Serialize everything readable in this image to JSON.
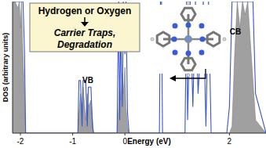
{
  "chart_data": {
    "type": "area",
    "x_label": "Energy (eV)",
    "y_label": "DOS (arbitrary units)",
    "annotations": [
      "Hydrogen or Oxygen",
      "Carrier Traps,",
      "Degradation",
      "VB",
      "CB"
    ],
    "x": [
      -2.15,
      -2.1,
      -2.05,
      -2.02,
      -2.0,
      -1.98,
      -1.95,
      -1.92,
      -1.9,
      -0.9,
      -0.88,
      -0.85,
      -0.82,
      -0.8,
      -0.75,
      -0.72,
      -0.7,
      -0.65,
      -0.62,
      -0.6,
      -0.15,
      -0.12,
      -0.1,
      -0.08,
      -0.05,
      -0.03,
      0.0,
      0.02,
      0.05,
      0.08,
      0.66,
      0.68,
      0.7,
      0.72,
      1.15,
      1.18,
      1.2,
      1.25,
      1.3,
      1.35,
      1.4,
      1.5,
      1.55,
      1.6,
      1.65,
      1.95,
      2.0,
      2.05,
      2.1,
      2.15,
      2.2,
      2.25,
      2.3,
      2.35,
      2.4,
      2.45,
      2.5,
      2.7
    ],
    "series": [
      {
        "type": "area",
        "color": "#a0a0a0",
        "values": [
          100,
          100,
          95,
          100,
          80,
          100,
          60,
          30,
          0,
          0,
          15,
          30,
          20,
          35,
          10,
          30,
          20,
          25,
          10,
          0,
          0,
          20,
          40,
          25,
          45,
          30,
          50,
          20,
          5,
          0,
          0,
          0,
          0,
          0,
          0,
          0,
          0,
          0,
          0,
          0,
          0,
          0,
          0,
          0,
          0,
          0,
          0,
          5,
          60,
          100,
          80,
          100,
          90,
          100,
          70,
          40,
          10,
          0
        ]
      },
      {
        "type": "line",
        "color": "#3a55d0",
        "values": [
          100,
          100,
          100,
          100,
          100,
          100,
          100,
          60,
          0,
          0,
          40,
          40,
          5,
          40,
          40,
          5,
          35,
          35,
          5,
          0,
          0,
          100,
          10,
          80,
          20,
          100,
          60,
          100,
          15,
          0,
          0,
          100,
          100,
          0,
          0,
          100,
          10,
          100,
          20,
          100,
          30,
          100,
          5,
          100,
          0,
          0,
          20,
          100,
          100,
          100,
          100,
          100,
          100,
          100,
          100,
          100,
          30,
          0
        ]
      }
    ],
    "xlim": [
      -2.15,
      2.7
    ],
    "ylim": [
      0,
      100
    ],
    "xticks": [
      -2,
      -1,
      0,
      2
    ],
    "tick_labels": "x",
    "grid": false
  }
}
